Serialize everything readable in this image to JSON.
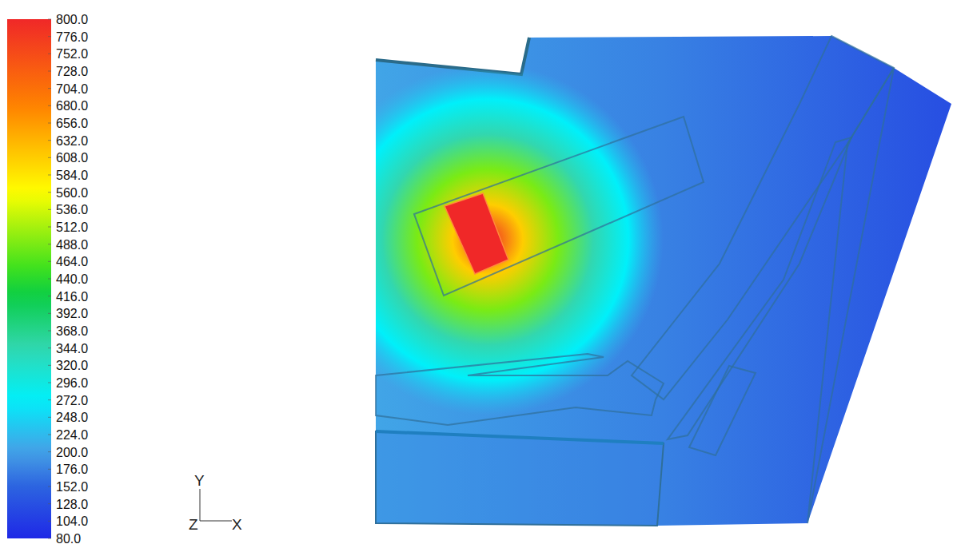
{
  "chart_data": {
    "type": "contour",
    "colorbar": {
      "range": [
        80,
        800
      ],
      "ticks": [
        {
          "value": 800,
          "label": "800.0"
        },
        {
          "value": 776,
          "label": "776.0"
        },
        {
          "value": 752,
          "label": "752.0"
        },
        {
          "value": 728,
          "label": "728.0"
        },
        {
          "value": 704,
          "label": "704.0"
        },
        {
          "value": 680,
          "label": "680.0"
        },
        {
          "value": 656,
          "label": "656.0"
        },
        {
          "value": 632,
          "label": "632.0"
        },
        {
          "value": 608,
          "label": "608.0"
        },
        {
          "value": 584,
          "label": "584.0"
        },
        {
          "value": 560,
          "label": "560.0"
        },
        {
          "value": 536,
          "label": "536.0"
        },
        {
          "value": 512,
          "label": "512.0"
        },
        {
          "value": 488,
          "label": "488.0"
        },
        {
          "value": 464,
          "label": "464.0"
        },
        {
          "value": 440,
          "label": "440.0"
        },
        {
          "value": 416,
          "label": "416.0"
        },
        {
          "value": 392,
          "label": "392.0"
        },
        {
          "value": 368,
          "label": "368.0"
        },
        {
          "value": 344,
          "label": "344.0"
        },
        {
          "value": 320,
          "label": "320.0"
        },
        {
          "value": 296,
          "label": "296.0"
        },
        {
          "value": 272,
          "label": "272.0"
        },
        {
          "value": 248,
          "label": "248.0"
        },
        {
          "value": 224,
          "label": "224.0"
        },
        {
          "value": 200,
          "label": "200.0"
        },
        {
          "value": 176,
          "label": "176.0"
        },
        {
          "value": 152,
          "label": "152.0"
        },
        {
          "value": 128,
          "label": "128.0"
        },
        {
          "value": 104,
          "label": "104.0"
        },
        {
          "value": 80,
          "label": "80.0"
        }
      ]
    },
    "plate_values": [
      205,
      175,
      125
    ],
    "hot_spot_values": [
      800,
      608,
      488,
      344,
      272,
      230
    ],
    "source_value": 800,
    "axis_labels": [
      "Y",
      "Z",
      "X"
    ]
  }
}
